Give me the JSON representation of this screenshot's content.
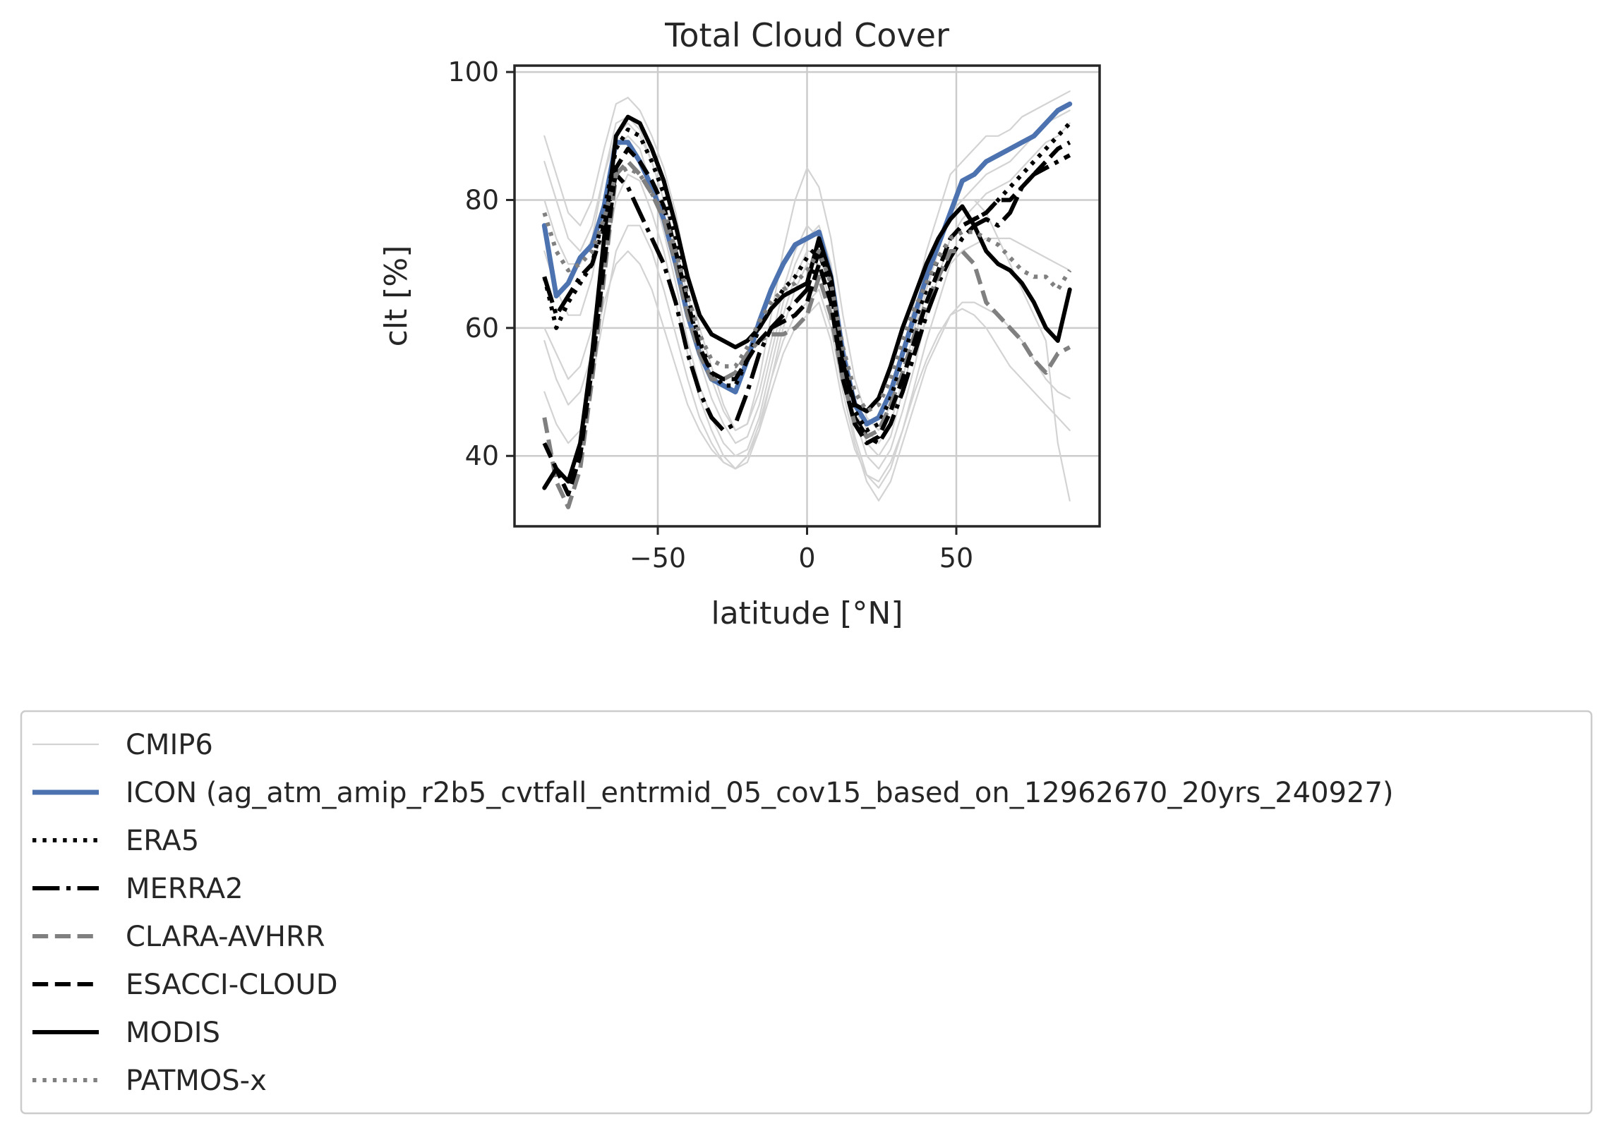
{
  "chart_data": {
    "type": "line",
    "title": "Total Cloud Cover",
    "xlabel": "latitude [°N]",
    "ylabel": "clt [%]",
    "xlim": [
      -98,
      98
    ],
    "ylim": [
      29,
      101
    ],
    "xticks": [
      -50,
      0,
      50
    ],
    "xtick_labels": [
      "−50",
      "0",
      "50"
    ],
    "yticks": [
      40,
      60,
      80,
      100
    ],
    "ytick_labels": [
      "40",
      "60",
      "80",
      "100"
    ],
    "grid": true,
    "legend_position": "below plot",
    "x": [
      -88,
      -84,
      -80,
      -76,
      -72,
      -68,
      -64,
      -60,
      -56,
      -52,
      -48,
      -44,
      -40,
      -36,
      -32,
      -28,
      -24,
      -20,
      -16,
      -12,
      -8,
      -4,
      0,
      4,
      8,
      12,
      16,
      20,
      24,
      28,
      32,
      36,
      40,
      44,
      48,
      52,
      56,
      60,
      64,
      68,
      72,
      76,
      80,
      84,
      88
    ],
    "series": [
      {
        "name": "CMIP6",
        "color": "#d3d3d3",
        "style": "solid",
        "width": 2.2,
        "values": [
          90,
          84,
          78,
          76,
          80,
          88,
          95,
          96,
          94,
          90,
          85,
          78,
          68,
          60,
          54,
          48,
          44,
          45,
          52,
          62,
          72,
          80,
          85,
          82,
          74,
          62,
          52,
          46,
          44,
          48,
          56,
          64,
          72,
          78,
          84,
          86,
          88,
          90,
          90,
          91,
          93,
          94,
          95,
          96,
          97
        ]
      },
      {
        "name": "CMIP6",
        "color": "#d3d3d3",
        "style": "solid",
        "width": 2.2,
        "legend": false,
        "values": [
          80,
          74,
          70,
          70,
          74,
          84,
          92,
          93,
          91,
          86,
          80,
          72,
          63,
          55,
          49,
          45,
          42,
          43,
          48,
          56,
          64,
          70,
          74,
          76,
          70,
          58,
          48,
          42,
          40,
          43,
          50,
          58,
          66,
          72,
          78,
          80,
          82,
          84,
          85,
          86,
          88,
          90,
          92,
          93,
          94
        ]
      },
      {
        "name": "CMIP6",
        "color": "#d3d3d3",
        "style": "solid",
        "width": 2.2,
        "legend": false,
        "values": [
          72,
          66,
          62,
          62,
          68,
          78,
          88,
          90,
          88,
          82,
          75,
          67,
          58,
          51,
          46,
          42,
          40,
          41,
          46,
          54,
          62,
          68,
          72,
          72,
          66,
          55,
          46,
          40,
          38,
          41,
          47,
          54,
          62,
          68,
          74,
          77,
          79,
          81,
          82,
          83,
          85,
          87,
          89,
          90,
          92
        ]
      },
      {
        "name": "CMIP6",
        "color": "#d3d3d3",
        "style": "solid",
        "width": 2.2,
        "legend": false,
        "values": [
          60,
          56,
          52,
          54,
          60,
          70,
          80,
          84,
          83,
          78,
          72,
          64,
          56,
          49,
          44,
          40,
          38,
          39,
          44,
          52,
          60,
          66,
          70,
          70,
          64,
          52,
          43,
          37,
          35,
          38,
          44,
          51,
          58,
          64,
          70,
          72,
          73,
          74,
          74,
          74,
          73,
          72,
          71,
          70,
          69
        ]
      },
      {
        "name": "CMIP6",
        "color": "#d3d3d3",
        "style": "solid",
        "width": 2.2,
        "legend": false,
        "values": [
          50,
          45,
          42,
          44,
          52,
          62,
          72,
          76,
          76,
          72,
          66,
          59,
          52,
          46,
          42,
          39,
          38,
          40,
          45,
          52,
          58,
          62,
          64,
          66,
          60,
          50,
          42,
          36,
          33,
          36,
          42,
          48,
          54,
          58,
          62,
          64,
          64,
          63,
          62,
          60,
          58,
          55,
          52,
          50,
          49
        ]
      },
      {
        "name": "CMIP6",
        "color": "#d3d3d3",
        "style": "solid",
        "width": 2.2,
        "legend": false,
        "values": [
          86,
          80,
          74,
          72,
          76,
          84,
          90,
          92,
          90,
          86,
          80,
          73,
          65,
          58,
          52,
          47,
          44,
          45,
          50,
          58,
          66,
          72,
          76,
          74,
          68,
          58,
          49,
          44,
          42,
          45,
          52,
          60,
          67,
          73,
          78,
          80,
          80,
          78,
          74,
          70,
          66,
          62,
          58,
          42,
          33
        ]
      },
      {
        "name": "CMIP6",
        "color": "#d3d3d3",
        "style": "solid",
        "width": 2.2,
        "legend": false,
        "values": [
          58,
          52,
          48,
          50,
          56,
          64,
          70,
          72,
          70,
          66,
          60,
          54,
          48,
          44,
          41,
          39,
          38,
          40,
          44,
          50,
          56,
          60,
          62,
          64,
          58,
          48,
          41,
          37,
          36,
          39,
          44,
          50,
          55,
          59,
          62,
          63,
          62,
          60,
          57,
          54,
          52,
          50,
          48,
          46,
          44
        ]
      },
      {
        "name": "ICON (ag_atm_amip_r2b5_cvtfall_entrmid_05_cov15_based_on_12962670_20yrs_240927)",
        "color": "#4c72b0",
        "style": "solid",
        "width": 7,
        "values": [
          76,
          65,
          67,
          71,
          73,
          79,
          89,
          89,
          86,
          82,
          77,
          70,
          62,
          56,
          52,
          51,
          50,
          55,
          61,
          66,
          70,
          73,
          74,
          75,
          68,
          56,
          48,
          45,
          46,
          50,
          56,
          62,
          68,
          73,
          78,
          83,
          84,
          86,
          87,
          88,
          89,
          90,
          92,
          94,
          95
        ]
      },
      {
        "name": "ERA5",
        "color": "#000000",
        "style": "dotted",
        "width": 6,
        "values": [
          68,
          60,
          64,
          67,
          70,
          78,
          88,
          91,
          90,
          86,
          81,
          74,
          65,
          58,
          53,
          51,
          51,
          55,
          60,
          63,
          66,
          68,
          71,
          73,
          66,
          55,
          47,
          44,
          45,
          49,
          55,
          61,
          66,
          71,
          74,
          76,
          77,
          78,
          80,
          82,
          84,
          86,
          88,
          90,
          92
        ]
      },
      {
        "name": "MERRA2",
        "color": "#000000",
        "style": "dashdot",
        "width": 6,
        "values": [
          68,
          62,
          65,
          68,
          70,
          76,
          84,
          82,
          78,
          74,
          70,
          64,
          56,
          50,
          46,
          44,
          45,
          50,
          56,
          60,
          62,
          64,
          66,
          72,
          66,
          54,
          46,
          43,
          42,
          45,
          50,
          56,
          62,
          67,
          71,
          74,
          76,
          77,
          76,
          78,
          82,
          84,
          85,
          86,
          87
        ]
      },
      {
        "name": "CLARA-AVHRR",
        "color": "#808080",
        "style": "dashed",
        "width": 6,
        "values": [
          46,
          36,
          32,
          38,
          52,
          68,
          84,
          86,
          84,
          81,
          77,
          70,
          62,
          56,
          52,
          52,
          53,
          56,
          58,
          59,
          59,
          60,
          62,
          68,
          62,
          52,
          45,
          43,
          44,
          48,
          53,
          59,
          64,
          68,
          72,
          72,
          70,
          64,
          62,
          60,
          58,
          55,
          53,
          56,
          57
        ]
      },
      {
        "name": "ESACCI-CLOUD",
        "color": "#000000",
        "style": "dashed",
        "width": 6,
        "values": [
          42,
          38,
          34,
          40,
          54,
          70,
          85,
          88,
          86,
          83,
          79,
          72,
          64,
          57,
          53,
          52,
          52,
          55,
          58,
          60,
          61,
          62,
          64,
          70,
          64,
          52,
          45,
          42,
          43,
          47,
          52,
          58,
          64,
          69,
          74,
          76,
          77,
          78,
          80,
          80,
          82,
          84,
          86,
          88,
          89
        ]
      },
      {
        "name": "MODIS",
        "color": "#000000",
        "style": "solid",
        "width": 6,
        "values": [
          35,
          38,
          36,
          42,
          56,
          74,
          90,
          93,
          92,
          88,
          83,
          76,
          68,
          62,
          59,
          58,
          57,
          58,
          60,
          63,
          65,
          66,
          67,
          74,
          68,
          55,
          48,
          47,
          49,
          54,
          60,
          65,
          70,
          74,
          77,
          79,
          76,
          72,
          70,
          69,
          67,
          64,
          60,
          58,
          66
        ]
      },
      {
        "name": "PATMOS-x",
        "color": "#808080",
        "style": "dotted",
        "width": 6,
        "values": [
          78,
          72,
          69,
          70,
          72,
          77,
          84,
          85,
          84,
          81,
          78,
          72,
          65,
          59,
          55,
          54,
          54,
          57,
          61,
          64,
          66,
          67,
          69,
          72,
          67,
          57,
          50,
          47,
          48,
          52,
          58,
          63,
          67,
          71,
          74,
          75,
          75,
          74,
          73,
          71,
          69,
          68,
          68,
          66,
          69
        ]
      }
    ]
  }
}
